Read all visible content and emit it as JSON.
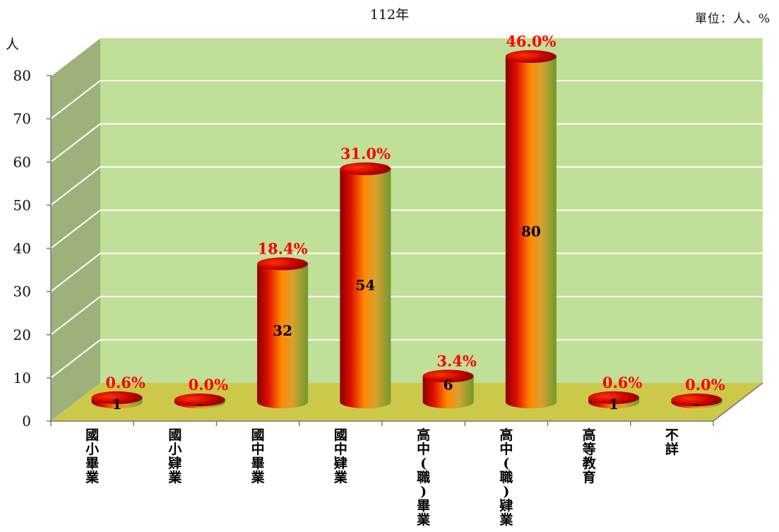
{
  "chart_data": {
    "type": "bar",
    "title": "112年",
    "unit_note": "單位：人、%",
    "ylabel": "人",
    "ylim": [
      0,
      80
    ],
    "yticks": [
      "0",
      "10",
      "20",
      "30",
      "40",
      "50",
      "60",
      "70",
      "80"
    ],
    "grid": true,
    "categories": [
      "國小畢業",
      "國小肄業",
      "國中畢業",
      "國中肄業",
      "高中(職)畢業",
      "高中(職)肄業",
      "高等教育",
      "不詳"
    ],
    "values": [
      1,
      0,
      32,
      54,
      6,
      80,
      1,
      0
    ],
    "value_labels": [
      "1",
      "-",
      "32",
      "54",
      "6",
      "80",
      "1",
      "-"
    ],
    "percent_labels": [
      "0.6%",
      "0.0%",
      "18.4%",
      "31.0%",
      "3.4%",
      "46.0%",
      "0.6%",
      "0.0%"
    ]
  }
}
